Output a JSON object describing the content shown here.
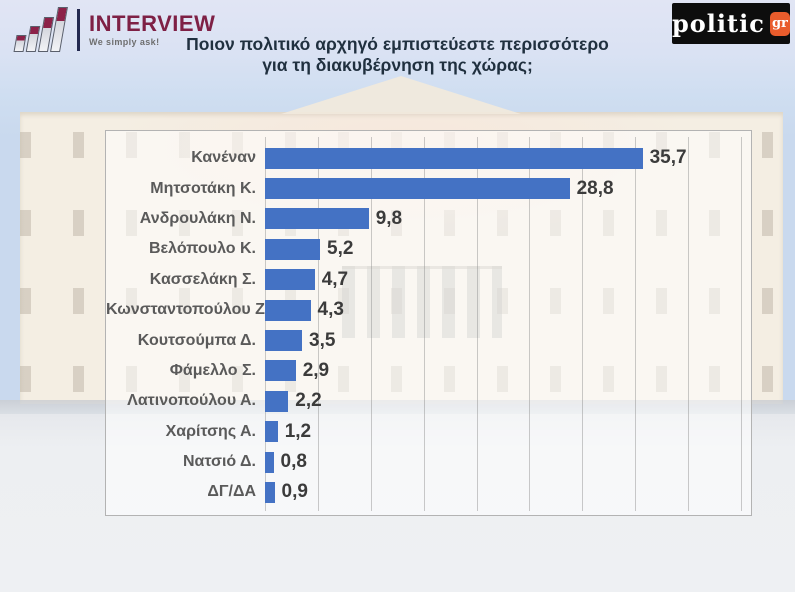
{
  "header": {
    "interview": {
      "name": "INTERVIEW",
      "tagline": "We simply ask!"
    },
    "politic": {
      "name": "politic",
      "suffix": "gr"
    },
    "title_line1": "Ποιον πολιτικό αρχηγό εμπιστεύεστε περισσότερο",
    "title_line2": "για τη διακυβέρνηση της χώρας;"
  },
  "chart_data": {
    "type": "bar",
    "orientation": "horizontal",
    "title": "Ποιον πολιτικό αρχηγό εμπιστεύεστε περισσότερο για τη διακυβέρνηση της χώρας;",
    "categories": [
      "Κανέναν",
      "Μητσοτάκη Κ.",
      "Ανδρουλάκη Ν.",
      "Βελόπουλο Κ.",
      "Κασσελάκη Σ.",
      "Κωνσταντοπούλου Ζ.",
      "Κουτσούμπα Δ.",
      "Φάμελλο Σ.",
      "Λατινοπούλου Α.",
      "Χαρίτσης Α.",
      "Νατσιό Δ.",
      "ΔΓ/ΔΑ"
    ],
    "values": [
      35.7,
      28.8,
      9.8,
      5.2,
      4.7,
      4.3,
      3.5,
      2.9,
      2.2,
      1.2,
      0.8,
      0.9
    ],
    "value_labels": [
      "35,7",
      "28,8",
      "9,8",
      "5,2",
      "4,7",
      "4,3",
      "3,5",
      "2,9",
      "2,2",
      "1,2",
      "0,8",
      "0,9"
    ],
    "xlabel": "",
    "ylabel": "",
    "xlim": [
      0,
      45
    ],
    "gridline_interval": 5,
    "grid": true,
    "legend": false,
    "bar_color": "#4472C4"
  },
  "colors": {
    "bar": "#4472C4",
    "title_text": "#20303F",
    "category_label": "#5A5A5A",
    "value_label": "#3B3B3B",
    "interview_maroon": "#7E2045",
    "politic_black": "#0D0D0D",
    "politic_orange": "#E95C2C",
    "panel_border": "#B3B3B3"
  }
}
